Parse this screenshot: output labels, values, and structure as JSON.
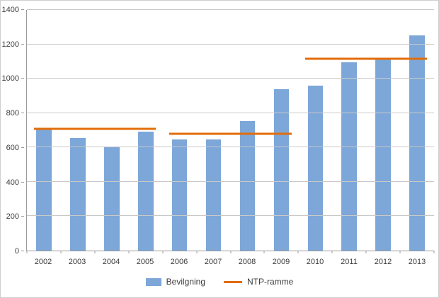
{
  "chart_data": {
    "type": "bar",
    "title": "",
    "xlabel": "",
    "ylabel": "",
    "categories": [
      "2002",
      "2003",
      "2004",
      "2005",
      "2006",
      "2007",
      "2008",
      "2009",
      "2010",
      "2011",
      "2012",
      "2013"
    ],
    "series": [
      {
        "name": "Bevilgning",
        "type": "bar",
        "color": "#7da7d8",
        "values": [
          705,
          655,
          600,
          690,
          645,
          645,
          755,
          940,
          960,
          1095,
          1110,
          1250
        ]
      },
      {
        "name": "NTP-ramme",
        "type": "line-segments",
        "color": "#e36c0a",
        "segments": [
          {
            "from": "2002",
            "to": "2005",
            "value": 710
          },
          {
            "from": "2006",
            "to": "2009",
            "value": 680
          },
          {
            "from": "2010",
            "to": "2013",
            "value": 1115
          }
        ]
      }
    ],
    "ylim": [
      0,
      1400
    ],
    "yticks": [
      0,
      200,
      400,
      600,
      800,
      1000,
      1200,
      1400
    ],
    "grid": true,
    "legend_position": "bottom",
    "colors": {
      "gridline": "#c9c9c9",
      "axis": "#9b9b9b",
      "text": "#3c3c3c",
      "background": "#ffffff"
    }
  }
}
